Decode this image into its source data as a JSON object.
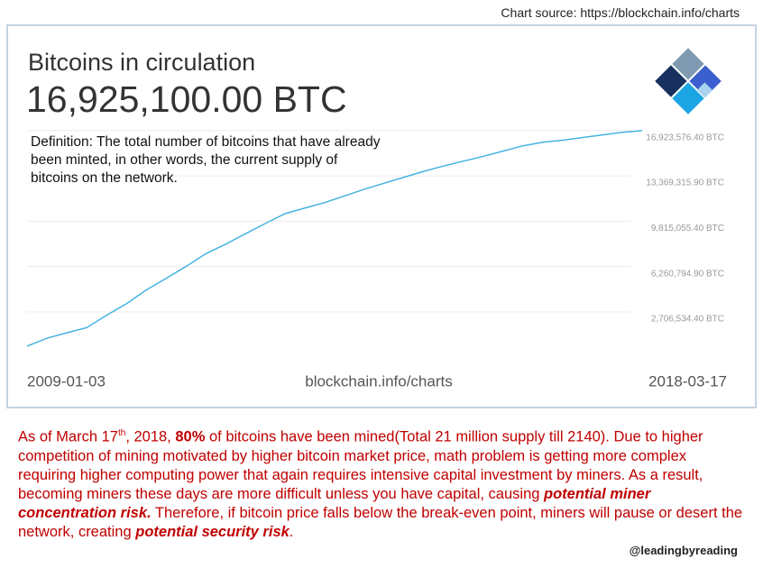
{
  "source": "Chart source: https://blockchain.info/charts",
  "chart_data": {
    "type": "line",
    "title": "Bitcoins in circulation",
    "subtitle": "16,925,100.00 BTC",
    "definition": "Definition: The total number of bitcoins that have already been minted, in other words, the current supply of bitcoins on the network.",
    "watermark": "blockchain.info/charts",
    "categories": [
      "2009-01-03",
      null,
      null,
      null,
      null,
      null,
      null,
      null,
      null,
      null,
      null,
      null,
      null,
      null,
      null,
      null,
      null,
      null,
      null,
      null,
      null,
      null,
      null,
      null,
      null,
      null,
      null,
      null,
      null,
      null,
      null,
      "2018-03-17"
    ],
    "values": [
      20000,
      640000,
      1070000,
      1470000,
      2440000,
      3340000,
      4420000,
      5330000,
      6260000,
      7260000,
      8010000,
      8830000,
      9630000,
      10410000,
      10850000,
      11280000,
      11800000,
      12320000,
      12800000,
      13260000,
      13730000,
      14150000,
      14530000,
      14900000,
      15320000,
      15730000,
      16010000,
      16170000,
      16380000,
      16580000,
      16790000,
      16920000
    ],
    "color": "#45b3e0",
    "ylim": [
      -900000,
      17900000
    ],
    "yticks": [
      {
        "value": 2706534.4,
        "label": "2,706,534.40 BTC"
      },
      {
        "value": 6260794.9,
        "label": "6,260,794.90 BTC"
      },
      {
        "value": 9815055.4,
        "label": "9,815,055.40 BTC"
      },
      {
        "value": 13369315.9,
        "label": "13,369,315.90 BTC"
      },
      {
        "value": 16923576.4,
        "label": "16,923,576.40 BTC"
      }
    ],
    "grid": true
  },
  "note": {
    "parts": [
      "As of March 17",
      "th",
      ", 2018, ",
      "80%",
      " of bitcoins have been mined(Total 21 million supply till 2140). Due to higher competition of mining motivated by higher bitcoin market price, math problem is getting more complex requiring higher computing power that again requires intensive capital investment by miners. As a result, becoming miners these days are more difficult unless you have capital, causing ",
      "potential miner concentration risk.",
      " Therefore, if bitcoin price falls below the break-even point, miners will pause or desert the network, creating ",
      "potential security risk",
      "."
    ],
    "handle": "@leadingbyreading"
  }
}
